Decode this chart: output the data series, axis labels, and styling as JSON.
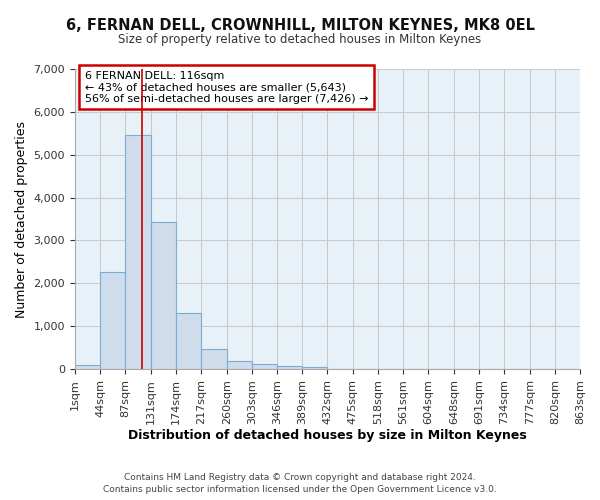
{
  "title": "6, FERNAN DELL, CROWNHILL, MILTON KEYNES, MK8 0EL",
  "subtitle": "Size of property relative to detached houses in Milton Keynes",
  "xlabel": "Distribution of detached houses by size in Milton Keynes",
  "ylabel": "Number of detached properties",
  "footer_line1": "Contains HM Land Registry data © Crown copyright and database right 2024.",
  "footer_line2": "Contains public sector information licensed under the Open Government Licence v3.0.",
  "annotation_title": "6 FERNAN DELL: 116sqm",
  "annotation_line2": "← 43% of detached houses are smaller (5,643)",
  "annotation_line3": "56% of semi-detached houses are larger (7,426) →",
  "property_size": 116,
  "bar_edges": [
    1,
    44,
    87,
    131,
    174,
    217,
    260,
    303,
    346,
    389,
    432,
    475,
    518,
    561,
    604,
    648,
    691,
    734,
    777,
    820,
    863
  ],
  "bar_heights": [
    90,
    2270,
    5450,
    3430,
    1310,
    470,
    185,
    120,
    80,
    55,
    0,
    0,
    0,
    0,
    0,
    0,
    0,
    0,
    0,
    0
  ],
  "bar_color": "#cfdcec",
  "bar_edge_color": "#7aadd4",
  "vline_color": "#cc0000",
  "grid_color": "#c8c8c8",
  "bg_color": "#ffffff",
  "plot_bg_color": "#e8f0f8",
  "annotation_box_color": "#ffffff",
  "annotation_box_edge": "#cc0000",
  "ylim": [
    0,
    7000
  ],
  "yticks": [
    0,
    1000,
    2000,
    3000,
    4000,
    5000,
    6000,
    7000
  ]
}
